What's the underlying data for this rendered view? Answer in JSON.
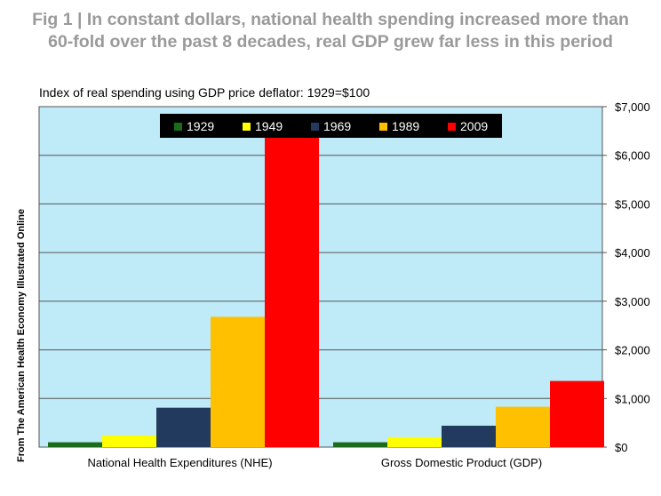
{
  "title_line1": "Fig 1 | In constant dollars, national health spending increased more than",
  "title_line2": "60-fold over the past 8 decades, real GDP grew far less in this period",
  "subtitle": "Index of real spending using GDP price deflator:  1929=$100",
  "source": "From The American Health Economy Illustrated Online",
  "chart_data": {
    "type": "bar",
    "categories": [
      "National Health Expenditures (NHE)",
      "Gross Domestic Product (GDP)"
    ],
    "series": [
      {
        "name": "1929",
        "values": [
          100,
          100
        ],
        "color": "#1a6b1a"
      },
      {
        "name": "1949",
        "values": [
          240,
          205
        ],
        "color": "#ffff00"
      },
      {
        "name": "1969",
        "values": [
          810,
          440
        ],
        "color": "#223a5e"
      },
      {
        "name": "1989",
        "values": [
          2680,
          830
        ],
        "color": "#ffc000"
      },
      {
        "name": "2009",
        "values": [
          6580,
          1360
        ],
        "color": "#ff0000"
      }
    ],
    "ylim": [
      0,
      7000
    ],
    "yticks": [
      "$0",
      "$1,000",
      "$2,000",
      "$3,000",
      "$4,000",
      "$5,000",
      "$6,000",
      "$7,000"
    ],
    "y_axis_side": "right",
    "legend_position": "top-center",
    "plot_background": "#bfeaf7",
    "legend_background": "#000000"
  }
}
